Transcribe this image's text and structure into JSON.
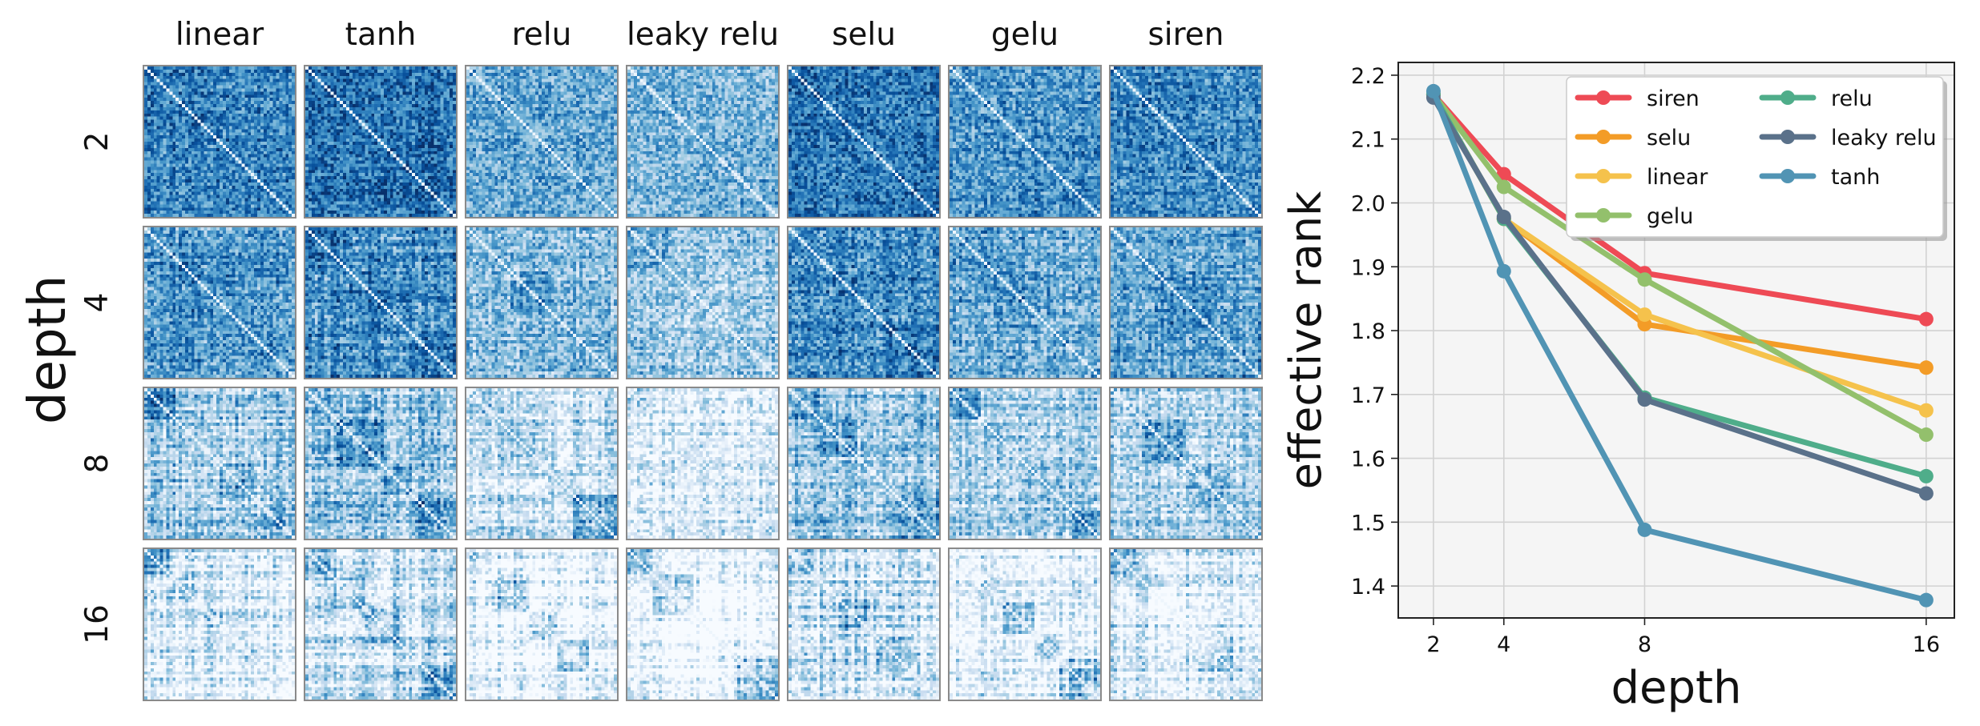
{
  "heatmap_grid": {
    "type": "heatmap",
    "columns": [
      "linear",
      "tanh",
      "relu",
      "leaky relu",
      "selu",
      "gelu",
      "siren"
    ],
    "rows": [
      "2",
      "4",
      "8",
      "16"
    ],
    "row_axis_label": "depth",
    "colormap": "Blues"
  },
  "chart_data": {
    "type": "line",
    "xlabel": "depth",
    "ylabel": "effective rank",
    "x": [
      2,
      4,
      8,
      16
    ],
    "xticks": [
      "2",
      "4",
      "8",
      "16"
    ],
    "ylim": [
      1.35,
      2.22
    ],
    "yticks": [
      "1.4",
      "1.5",
      "1.6",
      "1.7",
      "1.8",
      "1.9",
      "2.0",
      "2.1",
      "2.2"
    ],
    "grid": true,
    "legend_position": "top-right",
    "series": [
      {
        "name": "siren",
        "color": "#ee4a55",
        "values": [
          2.17,
          2.045,
          1.89,
          1.818
        ]
      },
      {
        "name": "selu",
        "color": "#f39c27",
        "values": [
          2.17,
          1.975,
          1.81,
          1.742
        ]
      },
      {
        "name": "linear",
        "color": "#f5c24c",
        "values": [
          2.17,
          1.975,
          1.825,
          1.675
        ]
      },
      {
        "name": "gelu",
        "color": "#93c06c",
        "values": [
          2.17,
          2.025,
          1.88,
          1.637
        ]
      },
      {
        "name": "relu",
        "color": "#4fad8a",
        "values": [
          2.17,
          1.975,
          1.695,
          1.572
        ]
      },
      {
        "name": "leaky relu",
        "color": "#5a718a",
        "values": [
          2.165,
          1.978,
          1.692,
          1.545
        ]
      },
      {
        "name": "tanh",
        "color": "#5194b4",
        "values": [
          2.175,
          1.893,
          1.488,
          1.378
        ]
      }
    ]
  }
}
